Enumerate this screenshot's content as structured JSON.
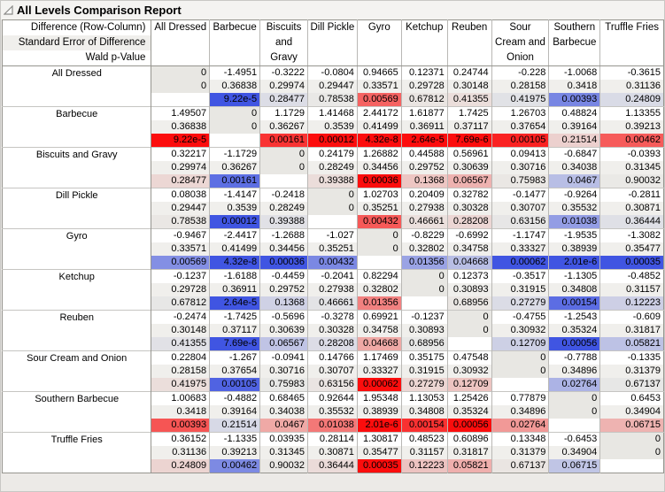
{
  "title": "All Levels Comparison Report",
  "header": {
    "row_label_lines": [
      "Difference (Row-Column)",
      "Standard Error of Difference",
      "Wald p-Value"
    ],
    "columns": [
      "All Dressed",
      "Barbecue",
      "Biscuits and Gravy",
      "Dill Pickle",
      "Gyro",
      "Ketchup",
      "Reuben",
      "Sour Cream and Onion",
      "Southern Barbecue",
      "Truffle Fries"
    ]
  },
  "colors": {
    "significant_positive": "#fc0d0d",
    "significant_negative": "#4055e2",
    "neutral_base": "#eae9e6",
    "se_stripe": "#f0efec",
    "diagonal_gray": "#e8e7e3"
  },
  "rows": [
    {
      "label": "All Dressed",
      "difference": [
        "0",
        "-1.4951",
        "-0.3222",
        "-0.0804",
        "0.94665",
        "0.12371",
        "0.24744",
        "-0.228",
        "-1.0068",
        "-0.3615"
      ],
      "std_error": [
        "0",
        "0.36838",
        "0.29974",
        "0.29447",
        "0.33571",
        "0.29728",
        "0.30148",
        "0.28158",
        "0.3418",
        "0.31136"
      ],
      "p_value": [
        "",
        "9.22e-5",
        "0.28477",
        "0.78538",
        "0.00569",
        "0.67812",
        "0.41355",
        "0.41975",
        "0.00393",
        "0.24809"
      ]
    },
    {
      "label": "Barbecue",
      "difference": [
        "1.49507",
        "0",
        "1.1729",
        "1.41468",
        "2.44172",
        "1.61877",
        "1.7425",
        "1.26703",
        "0.48824",
        "1.13355"
      ],
      "std_error": [
        "0.36838",
        "0",
        "0.36267",
        "0.3539",
        "0.41499",
        "0.36911",
        "0.37117",
        "0.37654",
        "0.39164",
        "0.39213"
      ],
      "p_value": [
        "9.22e-5",
        "",
        "0.00161",
        "0.00012",
        "4.32e-8",
        "2.64e-5",
        "7.69e-6",
        "0.00105",
        "0.21514",
        "0.00462"
      ]
    },
    {
      "label": "Biscuits and Gravy",
      "difference": [
        "0.32217",
        "-1.1729",
        "0",
        "0.24179",
        "1.26882",
        "0.44588",
        "0.56961",
        "0.09413",
        "-0.6847",
        "-0.0393"
      ],
      "std_error": [
        "0.29974",
        "0.36267",
        "0",
        "0.28249",
        "0.34456",
        "0.29752",
        "0.30639",
        "0.30716",
        "0.34038",
        "0.31345"
      ],
      "p_value": [
        "0.28477",
        "0.00161",
        "",
        "0.39388",
        "0.00036",
        "0.1368",
        "0.06567",
        "0.75983",
        "0.0467",
        "0.90032"
      ]
    },
    {
      "label": "Dill Pickle",
      "difference": [
        "0.08038",
        "-1.4147",
        "-0.2418",
        "0",
        "1.02703",
        "0.20409",
        "0.32782",
        "-0.1477",
        "-0.9264",
        "-0.2811"
      ],
      "std_error": [
        "0.29447",
        "0.3539",
        "0.28249",
        "0",
        "0.35251",
        "0.27938",
        "0.30328",
        "0.30707",
        "0.35532",
        "0.30871"
      ],
      "p_value": [
        "0.78538",
        "0.00012",
        "0.39388",
        "",
        "0.00432",
        "0.46661",
        "0.28208",
        "0.63156",
        "0.01038",
        "0.36444"
      ]
    },
    {
      "label": "Gyro",
      "difference": [
        "-0.9467",
        "-2.4417",
        "-1.2688",
        "-1.027",
        "0",
        "-0.8229",
        "-0.6992",
        "-1.1747",
        "-1.9535",
        "-1.3082"
      ],
      "std_error": [
        "0.33571",
        "0.41499",
        "0.34456",
        "0.35251",
        "0",
        "0.32802",
        "0.34758",
        "0.33327",
        "0.38939",
        "0.35477"
      ],
      "p_value": [
        "0.00569",
        "4.32e-8",
        "0.00036",
        "0.00432",
        "",
        "0.01356",
        "0.04668",
        "0.00062",
        "2.01e-6",
        "0.00035"
      ]
    },
    {
      "label": "Ketchup",
      "difference": [
        "-0.1237",
        "-1.6188",
        "-0.4459",
        "-0.2041",
        "0.82294",
        "0",
        "0.12373",
        "-0.3517",
        "-1.1305",
        "-0.4852"
      ],
      "std_error": [
        "0.29728",
        "0.36911",
        "0.29752",
        "0.27938",
        "0.32802",
        "0",
        "0.30893",
        "0.31915",
        "0.34808",
        "0.31157"
      ],
      "p_value": [
        "0.67812",
        "2.64e-5",
        "0.1368",
        "0.46661",
        "0.01356",
        "",
        "0.68956",
        "0.27279",
        "0.00154",
        "0.12223"
      ]
    },
    {
      "label": "Reuben",
      "difference": [
        "-0.2474",
        "-1.7425",
        "-0.5696",
        "-0.3278",
        "0.69921",
        "-0.1237",
        "0",
        "-0.4755",
        "-1.2543",
        "-0.609"
      ],
      "std_error": [
        "0.30148",
        "0.37117",
        "0.30639",
        "0.30328",
        "0.34758",
        "0.30893",
        "0",
        "0.30932",
        "0.35324",
        "0.31817"
      ],
      "p_value": [
        "0.41355",
        "7.69e-6",
        "0.06567",
        "0.28208",
        "0.04668",
        "0.68956",
        "",
        "0.12709",
        "0.00056",
        "0.05821"
      ]
    },
    {
      "label": "Sour Cream and Onion",
      "difference": [
        "0.22804",
        "-1.267",
        "-0.0941",
        "0.14766",
        "1.17469",
        "0.35175",
        "0.47548",
        "0",
        "-0.7788",
        "-0.1335"
      ],
      "std_error": [
        "0.28158",
        "0.37654",
        "0.30716",
        "0.30707",
        "0.33327",
        "0.31915",
        "0.30932",
        "0",
        "0.34896",
        "0.31379"
      ],
      "p_value": [
        "0.41975",
        "0.00105",
        "0.75983",
        "0.63156",
        "0.00062",
        "0.27279",
        "0.12709",
        "",
        "0.02764",
        "0.67137"
      ]
    },
    {
      "label": "Southern Barbecue",
      "difference": [
        "1.00683",
        "-0.4882",
        "0.68465",
        "0.92644",
        "1.95348",
        "1.13053",
        "1.25426",
        "0.77879",
        "0",
        "0.6453"
      ],
      "std_error": [
        "0.3418",
        "0.39164",
        "0.34038",
        "0.35532",
        "0.38939",
        "0.34808",
        "0.35324",
        "0.34896",
        "0",
        "0.34904"
      ],
      "p_value": [
        "0.00393",
        "0.21514",
        "0.0467",
        "0.01038",
        "2.01e-6",
        "0.00154",
        "0.00056",
        "0.02764",
        "",
        "0.06715"
      ]
    },
    {
      "label": "Truffle Fries",
      "difference": [
        "0.36152",
        "-1.1335",
        "0.03935",
        "0.28114",
        "1.30817",
        "0.48523",
        "0.60896",
        "0.13348",
        "-0.6453",
        "0"
      ],
      "std_error": [
        "0.31136",
        "0.39213",
        "0.31345",
        "0.30871",
        "0.35477",
        "0.31157",
        "0.31817",
        "0.31379",
        "0.34904",
        "0"
      ],
      "p_value": [
        "0.24809",
        "0.00462",
        "0.90032",
        "0.36444",
        "0.00035",
        "0.12223",
        "0.05821",
        "0.67137",
        "0.06715",
        ""
      ]
    }
  ]
}
